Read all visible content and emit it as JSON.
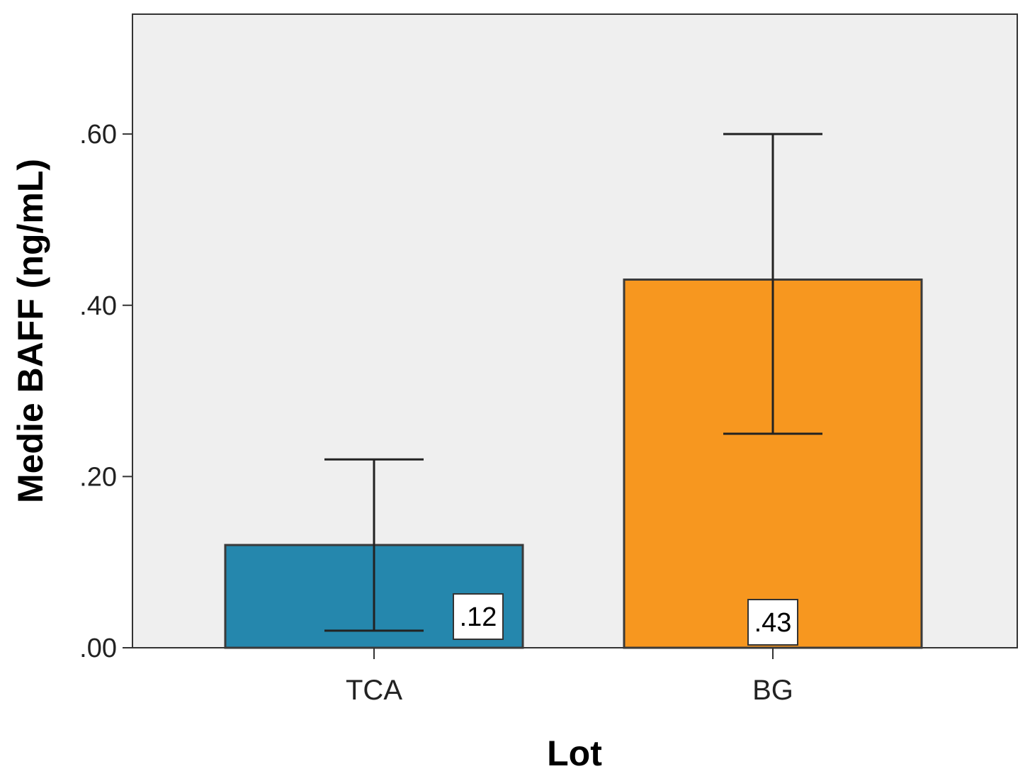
{
  "chart_data": {
    "type": "bar",
    "categories": [
      "TCA",
      "BG"
    ],
    "values": [
      0.12,
      0.43
    ],
    "value_labels": [
      ".12",
      ".43"
    ],
    "error_bars": [
      {
        "low": 0.02,
        "high": 0.22
      },
      {
        "low": 0.25,
        "high": 0.6
      }
    ],
    "ylim": [
      0,
      0.74
    ],
    "yticks": [
      0,
      0.2,
      0.4,
      0.6
    ],
    "ytick_labels": [
      ".00",
      ".20",
      ".40",
      ".60"
    ],
    "xlabel": "Lot",
    "ylabel": "Medie BAFF (ng/mL)",
    "grid": false,
    "colors": {
      "bars": [
        "#2587ad",
        "#f7971f"
      ],
      "plot_background": "#efefef",
      "frame": "#333333",
      "error_bar": "#222222",
      "label_box": "#ffffff"
    }
  }
}
